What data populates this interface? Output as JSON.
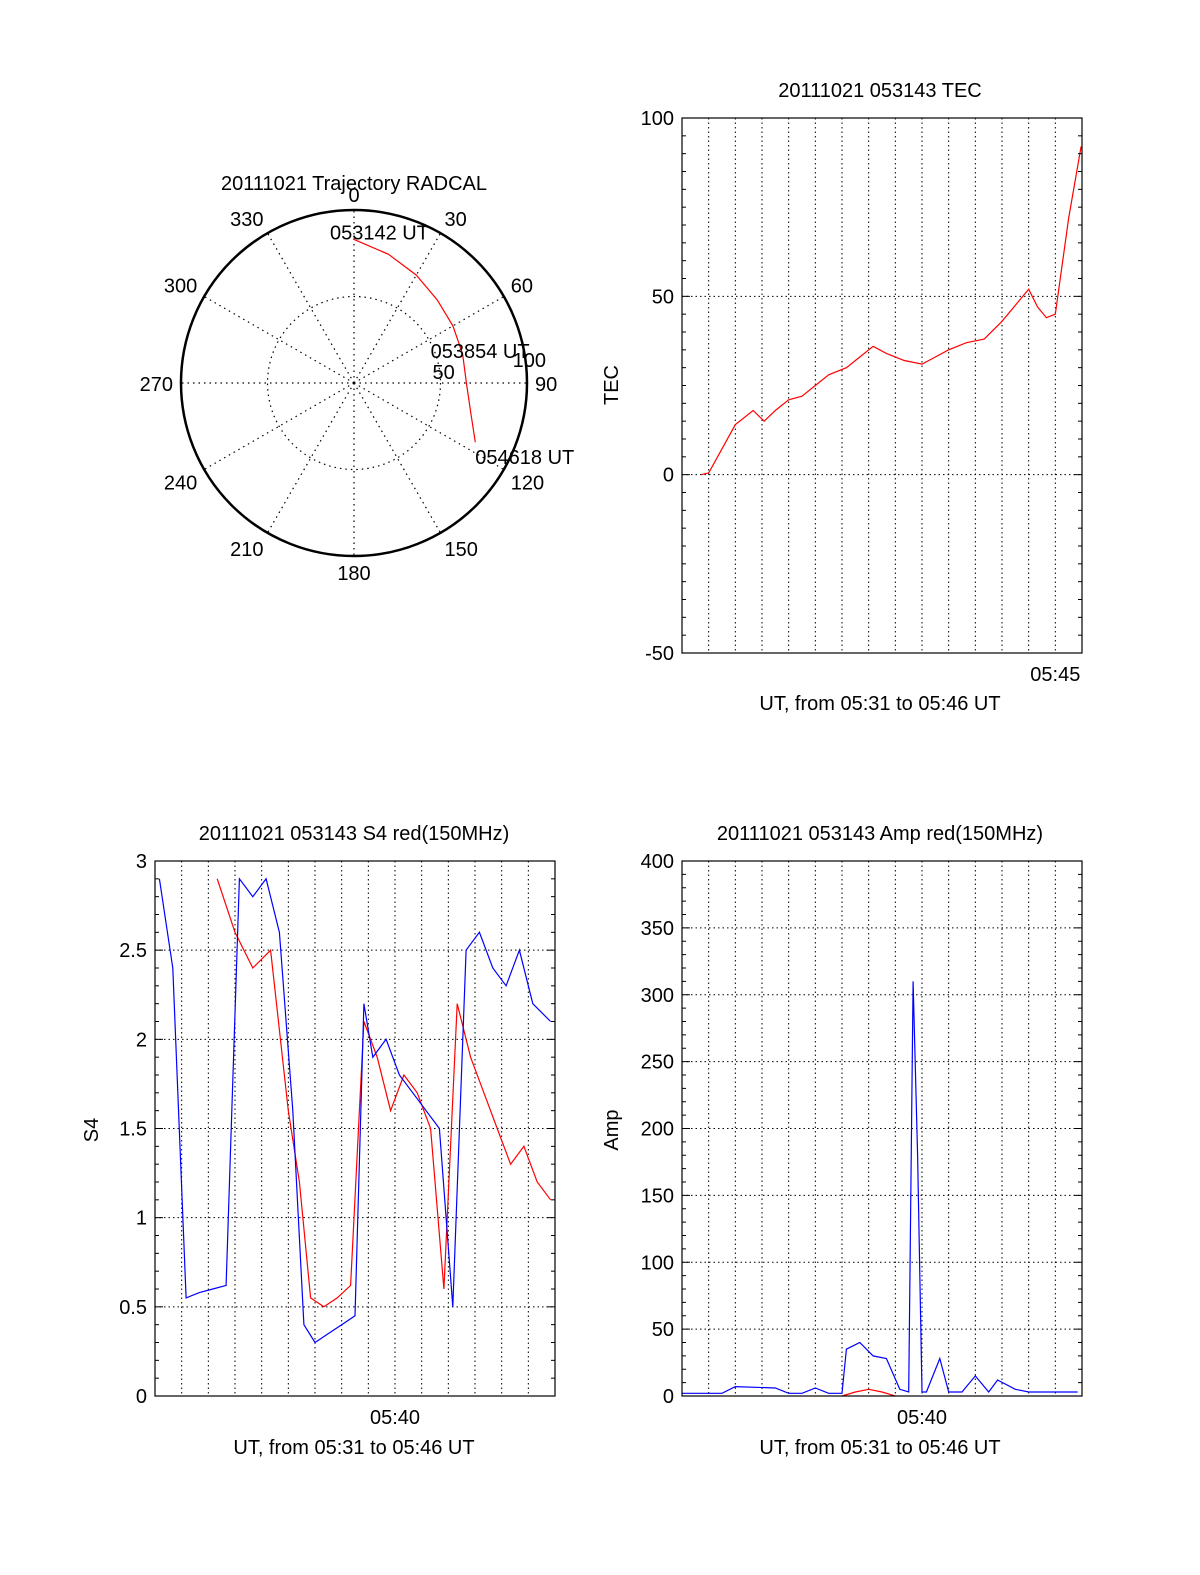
{
  "chart_data": [
    {
      "type": "polar",
      "title": "20111021 Trajectory RADCAL",
      "azimuth_labels": [
        "0",
        "30",
        "60",
        "90",
        "120",
        "150",
        "180",
        "210",
        "240",
        "270",
        "300",
        "330"
      ],
      "radius_labels": [
        "50",
        "100"
      ],
      "rlim": [
        0,
        100
      ],
      "grid": true,
      "trajectory": {
        "color": "#ff0000",
        "points": [
          {
            "az": 0,
            "r": 83
          },
          {
            "az": 15,
            "r": 77
          },
          {
            "az": 30,
            "r": 72
          },
          {
            "az": 45,
            "r": 68
          },
          {
            "az": 60,
            "r": 66
          },
          {
            "az": 75,
            "r": 65
          },
          {
            "az": 90,
            "r": 65
          },
          {
            "az": 105,
            "r": 70
          },
          {
            "az": 116,
            "r": 78
          }
        ],
        "annotations": [
          {
            "text": "053142 UT",
            "az": 0,
            "r": 83
          },
          {
            "text": "053854 UT",
            "az": 75,
            "r": 65
          },
          {
            "text": "054618 UT",
            "az": 116,
            "r": 78
          }
        ]
      }
    },
    {
      "type": "line",
      "title": "20111021 053143 TEC",
      "xlabel": "UT, from 05:31 to 05:46 UT",
      "ylabel": "TEC",
      "xlim": [
        "05:31",
        "05:46"
      ],
      "ylim": [
        -50,
        100
      ],
      "yticks": [
        "-50",
        "0",
        "50",
        "100"
      ],
      "xticks": [
        "05:45"
      ],
      "grid": true,
      "series": [
        {
          "color": "#ff0000",
          "x": [
            "05:31:43",
            "05:32:00",
            "05:32:20",
            "05:33:00",
            "05:33:40",
            "05:34:05",
            "05:34:30",
            "05:35:00",
            "05:35:30",
            "05:36:00",
            "05:36:30",
            "05:37:10",
            "05:37:40",
            "05:38:10",
            "05:38:40",
            "05:39:20",
            "05:40:00",
            "05:40:30",
            "05:41:00",
            "05:41:40",
            "05:42:20",
            "05:43:00",
            "05:43:40",
            "05:44:00",
            "05:44:20",
            "05:44:40",
            "05:45:00",
            "05:45:30",
            "05:45:58"
          ],
          "values": [
            0,
            0.5,
            5,
            14,
            18,
            15,
            18,
            21,
            22,
            25,
            28,
            30,
            33,
            36,
            34,
            32,
            31,
            33,
            35,
            37,
            38,
            43,
            49,
            52,
            47,
            44,
            45,
            72,
            92
          ]
        }
      ]
    },
    {
      "type": "line",
      "title": "20111021 053143 S4 red(150MHz)",
      "xlabel": "UT, from 05:31 to 05:46 UT",
      "ylabel": "S4",
      "xlim": [
        "05:31",
        "05:46"
      ],
      "ylim": [
        0,
        3
      ],
      "yticks": [
        "0",
        "0.5",
        "1",
        "1.5",
        "2",
        "2.5",
        "3"
      ],
      "xticks": [
        "05:40"
      ],
      "grid": true,
      "series": [
        {
          "color": "#ff0000",
          "x": [
            "05:33:20",
            "05:34:00",
            "05:34:40",
            "05:35:20",
            "05:36:00",
            "05:36:25",
            "05:36:50",
            "05:37:20",
            "05:37:50",
            "05:38:20",
            "05:38:50",
            "05:39:20",
            "05:39:50",
            "05:40:20",
            "05:40:50",
            "05:41:20",
            "05:41:50",
            "05:42:20",
            "05:42:50",
            "05:43:20",
            "05:43:50",
            "05:44:20",
            "05:44:50",
            "05:45:20",
            "05:45:50"
          ],
          "values": [
            2.9,
            2.6,
            2.4,
            2.5,
            1.6,
            1.2,
            0.55,
            0.5,
            0.55,
            0.62,
            2.1,
            1.9,
            1.6,
            1.8,
            1.7,
            1.5,
            0.6,
            2.2,
            1.9,
            1.7,
            1.5,
            1.3,
            1.4,
            1.2,
            1.1
          ]
        },
        {
          "color": "#0000ff",
          "x": [
            "05:31:10",
            "05:31:40",
            "05:32:10",
            "05:32:40",
            "05:33:10",
            "05:33:40",
            "05:34:10",
            "05:34:40",
            "05:35:10",
            "05:35:40",
            "05:36:10",
            "05:36:35",
            "05:37:00",
            "05:37:30",
            "05:38:00",
            "05:38:30",
            "05:38:50",
            "05:39:10",
            "05:39:40",
            "05:40:10",
            "05:40:40",
            "05:41:10",
            "05:41:40",
            "05:42:10",
            "05:42:40",
            "05:43:10",
            "05:43:40",
            "05:44:10",
            "05:44:40",
            "05:45:10",
            "05:45:50"
          ],
          "values": [
            2.9,
            2.4,
            0.55,
            0.58,
            0.6,
            0.62,
            2.9,
            2.8,
            2.9,
            2.6,
            1.6,
            0.4,
            0.3,
            0.35,
            0.4,
            0.45,
            2.2,
            1.9,
            2.0,
            1.8,
            1.7,
            1.6,
            1.5,
            0.5,
            2.5,
            2.6,
            2.4,
            2.3,
            2.5,
            2.2,
            2.1
          ]
        }
      ]
    },
    {
      "type": "line",
      "title": "20111021 053143 Amp red(150MHz)",
      "xlabel": "UT, from 05:31 to 05:46 UT",
      "ylabel": "Amp",
      "xlim": [
        "05:31",
        "05:46"
      ],
      "ylim": [
        0,
        400
      ],
      "yticks": [
        "0",
        "50",
        "100",
        "150",
        "200",
        "250",
        "300",
        "350",
        "400"
      ],
      "xticks": [
        "05:40"
      ],
      "grid": true,
      "series": [
        {
          "color": "#0000ff",
          "x": [
            "05:31:00",
            "05:32:30",
            "05:33:00",
            "05:34:30",
            "05:35:00",
            "05:35:30",
            "05:36:00",
            "05:36:30",
            "05:37:00",
            "05:37:10",
            "05:37:40",
            "05:38:10",
            "05:38:40",
            "05:39:10",
            "05:39:30",
            "05:39:40",
            "05:39:50",
            "05:40:00",
            "05:40:10",
            "05:40:40",
            "05:41:00",
            "05:41:10",
            "05:41:30",
            "05:42:00",
            "05:42:30",
            "05:42:50",
            "05:43:30",
            "05:44:00",
            "05:44:30",
            "05:45:00",
            "05:45:50"
          ],
          "values": [
            2,
            2,
            7,
            6,
            2,
            2,
            6,
            2,
            2,
            35,
            40,
            30,
            28,
            5,
            3,
            310,
            180,
            3,
            3,
            28,
            3,
            3,
            3,
            15,
            3,
            12,
            5,
            3,
            3,
            3,
            3
          ]
        },
        {
          "color": "#ff0000",
          "x": [
            "05:37:00",
            "05:37:30",
            "05:38:00",
            "05:38:30",
            "05:39:00"
          ],
          "values": [
            0,
            3,
            5,
            3,
            0
          ]
        }
      ]
    }
  ]
}
